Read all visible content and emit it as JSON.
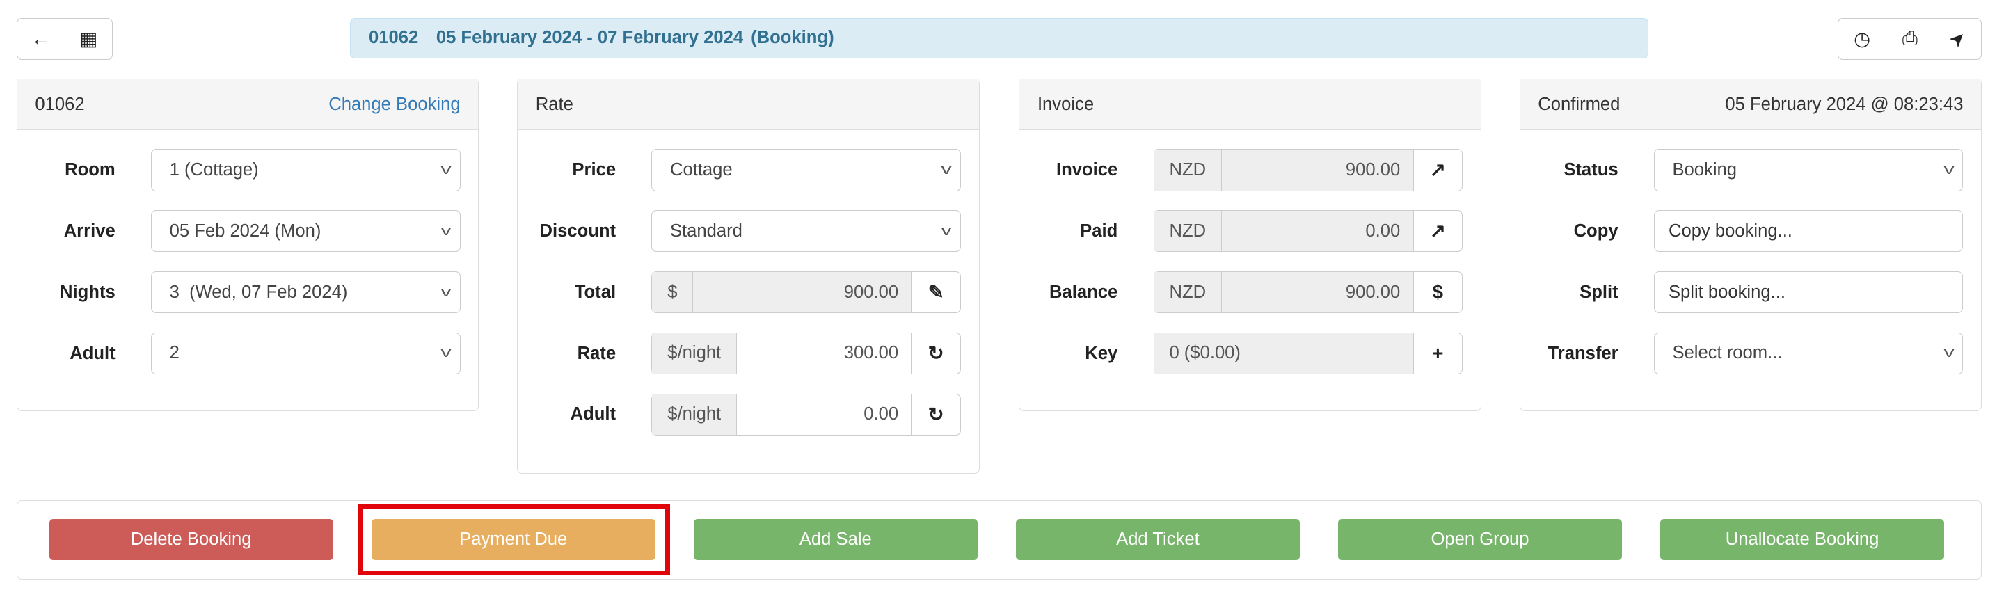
{
  "toolbar": {
    "left": [
      {
        "icon": "arrow-left-icon",
        "glyph": "🡄"
      },
      {
        "icon": "calendar-icon",
        "glyph": "▦"
      }
    ],
    "right": [
      {
        "icon": "clock-icon",
        "glyph": "◷"
      },
      {
        "icon": "print-icon",
        "glyph": "⎙"
      },
      {
        "icon": "send-icon",
        "glyph": "➤"
      }
    ]
  },
  "title": {
    "id": "01062",
    "dates": "05 February 2024 - 07 February 2024",
    "status": "(Booking)"
  },
  "booking": {
    "header": "01062",
    "link": "Change Booking",
    "rows": [
      {
        "label": "Room",
        "value": "1 (Cottage)"
      },
      {
        "label": "Arrive",
        "value": "05 Feb 2024 (Mon)"
      },
      {
        "label": "Nights",
        "value": "3  (Wed, 07 Feb 2024)"
      },
      {
        "label": "Adult",
        "value": "2"
      }
    ]
  },
  "rate": {
    "header": "Rate",
    "price": {
      "label": "Price",
      "value": "Cottage"
    },
    "discount": {
      "label": "Discount",
      "value": "Standard"
    },
    "total": {
      "label": "Total",
      "addon": "$",
      "value": "900.00"
    },
    "rate": {
      "label": "Rate",
      "addon": "$/night",
      "value": "300.00"
    },
    "adult": {
      "label": "Adult",
      "addon": "$/night",
      "value": "0.00"
    }
  },
  "invoice": {
    "header": "Invoice",
    "invoice": {
      "label": "Invoice",
      "addon": "NZD",
      "value": "900.00"
    },
    "paid": {
      "label": "Paid",
      "addon": "NZD",
      "value": "0.00"
    },
    "balance": {
      "label": "Balance",
      "addon": "NZD",
      "value": "900.00",
      "btn": "$"
    },
    "key": {
      "label": "Key",
      "value": "0 ($0.00)",
      "btn": "+"
    }
  },
  "status": {
    "header": "Confirmed",
    "timestamp": "05 February 2024 @ 08:23:43",
    "status": {
      "label": "Status",
      "value": "Booking"
    },
    "copy": {
      "label": "Copy",
      "value": "Copy booking..."
    },
    "split": {
      "label": "Split",
      "value": "Split booking..."
    },
    "transfer": {
      "label": "Transfer",
      "value": "Select room..."
    }
  },
  "actions": [
    {
      "label": "Delete Booking",
      "color": "#cd5c58"
    },
    {
      "label": "Payment Due",
      "color": "#e8ae5f"
    },
    {
      "label": "Add Sale",
      "color": "#76b56a"
    },
    {
      "label": "Add Ticket",
      "color": "#76b56a"
    },
    {
      "label": "Open Group",
      "color": "#76b56a"
    },
    {
      "label": "Unallocate Booking",
      "color": "#76b56a"
    }
  ],
  "highlight_color": "#e0040b"
}
